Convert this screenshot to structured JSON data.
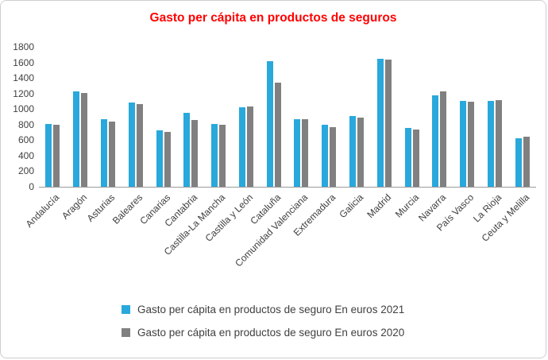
{
  "chart_data": {
    "type": "bar",
    "title": "Gasto per cápita en productos de seguros",
    "title_color": "#ff0000",
    "categories": [
      "Andalucía",
      "Aragón",
      "Asturias",
      "Baleares",
      "Canarias",
      "Cantabria",
      "Castilla-La Mancha",
      "Castilla y León",
      "Cataluña",
      "Comunidad Valenciana",
      "Extremadura",
      "Galicia",
      "Madrid",
      "Murcia",
      "Navarra",
      "País Vasco",
      "La Rioja",
      "Ceuta y Melilla"
    ],
    "series": [
      {
        "name": "Gasto per cápita en productos de seguro En euros 2021",
        "color": "#29a8dc",
        "values": [
          810,
          1230,
          870,
          1080,
          730,
          950,
          810,
          1020,
          1620,
          870,
          800,
          910,
          1650,
          760,
          1180,
          1100,
          1100,
          620
        ]
      },
      {
        "name": "Gasto per cápita en productos de seguro En euros 2020",
        "color": "#808080",
        "values": [
          800,
          1210,
          840,
          1060,
          710,
          860,
          800,
          1030,
          1340,
          870,
          770,
          890,
          1640,
          740,
          1230,
          1090,
          1110,
          640
        ]
      }
    ],
    "xlabel": "",
    "ylabel": "",
    "ylim": [
      0,
      1800
    ],
    "ytick_step": 200,
    "grid": false,
    "legend_position": "bottom"
  }
}
